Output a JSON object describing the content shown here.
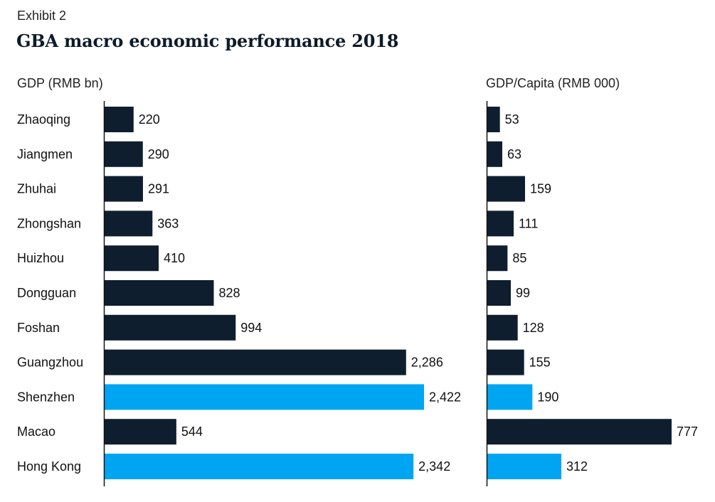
{
  "exhibit": "Exhibit 2",
  "title": "GBA macro economic performance 2018",
  "colors": {
    "default": "#0e1e2f",
    "highlight": "#00a5f2",
    "axis": "#111111"
  },
  "chart_data": [
    {
      "type": "bar",
      "orientation": "horizontal",
      "title": "GDP (RMB bn)",
      "categories": [
        "Zhaoqing",
        "Jiangmen",
        "Zhuhai",
        "Zhongshan",
        "Huizhou",
        "Dongguan",
        "Foshan",
        "Guangzhou",
        "Shenzhen",
        "Macao",
        "Hong Kong"
      ],
      "values": [
        220,
        290,
        291,
        363,
        410,
        828,
        994,
        2286,
        2422,
        544,
        2342
      ],
      "value_labels": [
        "220",
        "290",
        "291",
        "363",
        "410",
        "828",
        "994",
        "2,286",
        "2,422",
        "544",
        "2,342"
      ],
      "highlighted": [
        "Shenzhen",
        "Hong Kong"
      ],
      "xlim": [
        0,
        2422
      ],
      "grid": false
    },
    {
      "type": "bar",
      "orientation": "horizontal",
      "title": "GDP/Capita  (RMB 000)",
      "categories": [
        "Zhaoqing",
        "Jiangmen",
        "Zhuhai",
        "Zhongshan",
        "Huizhou",
        "Dongguan",
        "Foshan",
        "Guangzhou",
        "Shenzhen",
        "Macao",
        "Hong Kong"
      ],
      "values": [
        53,
        63,
        159,
        111,
        85,
        99,
        128,
        155,
        190,
        777,
        312
      ],
      "value_labels": [
        "53",
        "63",
        "159",
        "111",
        "85",
        "99",
        "128",
        "155",
        "190",
        "777",
        "312"
      ],
      "highlighted": [
        "Shenzhen",
        "Hong Kong"
      ],
      "xlim": [
        0,
        777
      ],
      "grid": false
    }
  ]
}
